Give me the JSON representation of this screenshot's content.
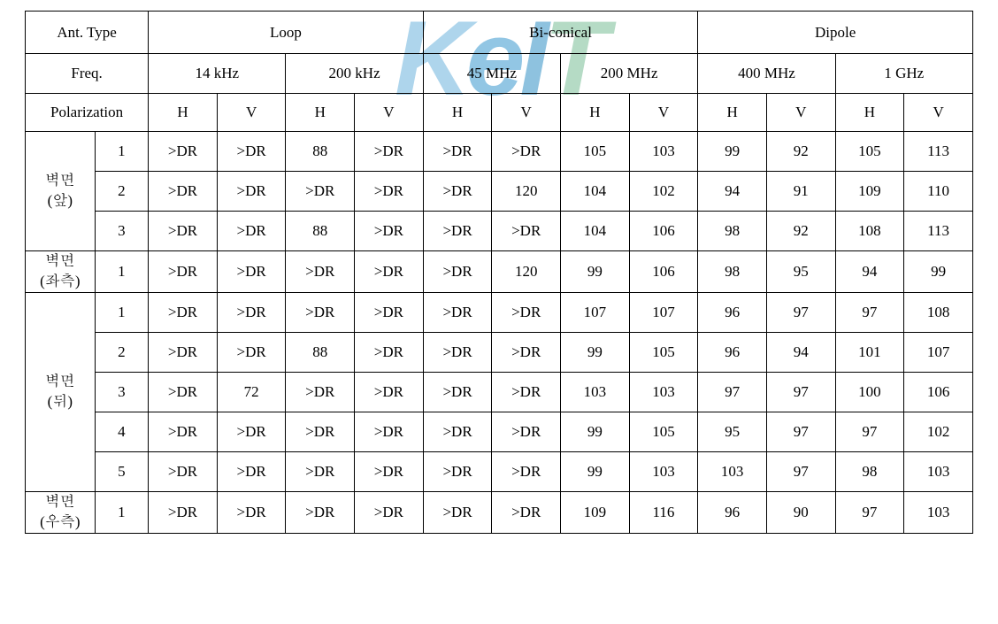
{
  "watermark": "KeIT",
  "table": {
    "background_color": "#ffffff",
    "border_color": "#000000",
    "font_family": "Times New Roman, Batang, serif",
    "font_size_pt": 13,
    "text_color": "#000000",
    "header": {
      "ant_type_label": "Ant. Type",
      "antenna_types": [
        "Loop",
        "Bi-conical",
        "Dipole"
      ],
      "freq_label": "Freq.",
      "frequencies": [
        "14 kHz",
        "200 kHz",
        "45 MHz",
        "200 MHz",
        "400 MHz",
        "1 GHz"
      ],
      "polarization_label": "Polarization",
      "polarizations": [
        "H",
        "V",
        "H",
        "V",
        "H",
        "V",
        "H",
        "V",
        "H",
        "V",
        "H",
        "V"
      ]
    },
    "groups": [
      {
        "label_line1": "벽면",
        "label_line2": "(앞)",
        "rows": [
          {
            "idx": "1",
            "cells": [
              ">DR",
              ">DR",
              "88",
              ">DR",
              ">DR",
              ">DR",
              "105",
              "103",
              "99",
              "92",
              "105",
              "113"
            ]
          },
          {
            "idx": "2",
            "cells": [
              ">DR",
              ">DR",
              ">DR",
              ">DR",
              ">DR",
              "120",
              "104",
              "102",
              "94",
              "91",
              "109",
              "110"
            ]
          },
          {
            "idx": "3",
            "cells": [
              ">DR",
              ">DR",
              "88",
              ">DR",
              ">DR",
              ">DR",
              "104",
              "106",
              "98",
              "92",
              "108",
              "113"
            ]
          }
        ]
      },
      {
        "label_line1": "벽면",
        "label_line2": "(좌측)",
        "rows": [
          {
            "idx": "1",
            "cells": [
              ">DR",
              ">DR",
              ">DR",
              ">DR",
              ">DR",
              "120",
              "99",
              "106",
              "98",
              "95",
              "94",
              "99"
            ]
          }
        ]
      },
      {
        "label_line1": "벽면",
        "label_line2": "(뒤)",
        "rows": [
          {
            "idx": "1",
            "cells": [
              ">DR",
              ">DR",
              ">DR",
              ">DR",
              ">DR",
              ">DR",
              "107",
              "107",
              "96",
              "97",
              "97",
              "108"
            ]
          },
          {
            "idx": "2",
            "cells": [
              ">DR",
              ">DR",
              "88",
              ">DR",
              ">DR",
              ">DR",
              "99",
              "105",
              "96",
              "94",
              "101",
              "107"
            ]
          },
          {
            "idx": "3",
            "cells": [
              ">DR",
              "72",
              ">DR",
              ">DR",
              ">DR",
              ">DR",
              "103",
              "103",
              "97",
              "97",
              "100",
              "106"
            ]
          },
          {
            "idx": "4",
            "cells": [
              ">DR",
              ">DR",
              ">DR",
              ">DR",
              ">DR",
              ">DR",
              "99",
              "105",
              "95",
              "97",
              "97",
              "102"
            ]
          },
          {
            "idx": "5",
            "cells": [
              ">DR",
              ">DR",
              ">DR",
              ">DR",
              ">DR",
              ">DR",
              "99",
              "103",
              "103",
              "97",
              "98",
              "103"
            ]
          }
        ]
      },
      {
        "label_line1": "벽면",
        "label_line2": "(우측)",
        "rows": [
          {
            "idx": "1",
            "cells": [
              ">DR",
              ">DR",
              ">DR",
              ">DR",
              ">DR",
              ">DR",
              "109",
              "116",
              "96",
              "90",
              "97",
              "103"
            ]
          }
        ]
      }
    ]
  }
}
